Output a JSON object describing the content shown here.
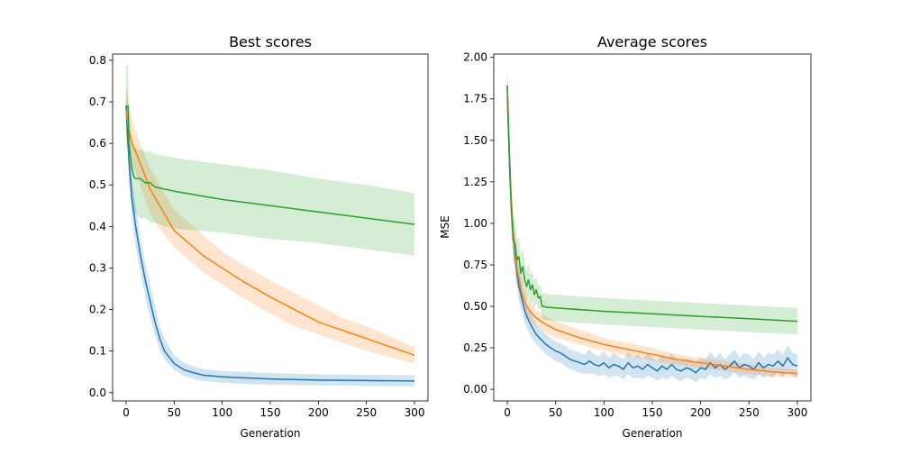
{
  "chart_data": [
    {
      "type": "line",
      "title": "Best scores",
      "xlabel": "Generation",
      "ylabel": "",
      "xlim": [
        -14,
        314
      ],
      "ylim": [
        -0.02,
        0.815
      ],
      "xticks": [
        0,
        50,
        100,
        150,
        200,
        250,
        300
      ],
      "yticks": [
        0.0,
        0.1,
        0.2,
        0.3,
        0.4,
        0.5,
        0.6,
        0.7,
        0.8
      ],
      "ytick_decimals": 1,
      "series": [
        {
          "color": "#1f77b4",
          "x": [
            0,
            3,
            6,
            10,
            15,
            20,
            25,
            30,
            35,
            40,
            50,
            60,
            70,
            80,
            100,
            120,
            150,
            200,
            250,
            300
          ],
          "values": [
            0.69,
            0.56,
            0.47,
            0.4,
            0.33,
            0.27,
            0.22,
            0.17,
            0.13,
            0.1,
            0.07,
            0.055,
            0.048,
            0.042,
            0.038,
            0.036,
            0.033,
            0.03,
            0.029,
            0.028
          ],
          "lower": [
            0.65,
            0.51,
            0.42,
            0.35,
            0.29,
            0.23,
            0.18,
            0.14,
            0.1,
            0.08,
            0.055,
            0.04,
            0.033,
            0.028,
            0.024,
            0.021,
            0.019,
            0.017,
            0.016,
            0.015
          ],
          "upper": [
            0.73,
            0.61,
            0.52,
            0.45,
            0.37,
            0.31,
            0.26,
            0.21,
            0.16,
            0.13,
            0.09,
            0.072,
            0.063,
            0.057,
            0.052,
            0.05,
            0.047,
            0.044,
            0.043,
            0.042
          ]
        },
        {
          "color": "#ff7f0e",
          "x": [
            0,
            3,
            6,
            10,
            15,
            20,
            25,
            30,
            40,
            50,
            60,
            80,
            100,
            120,
            150,
            175,
            200,
            225,
            250,
            275,
            300
          ],
          "values": [
            0.68,
            0.63,
            0.6,
            0.58,
            0.55,
            0.52,
            0.49,
            0.47,
            0.43,
            0.39,
            0.37,
            0.33,
            0.3,
            0.27,
            0.23,
            0.2,
            0.17,
            0.15,
            0.13,
            0.11,
            0.09
          ],
          "lower": [
            0.62,
            0.58,
            0.55,
            0.53,
            0.5,
            0.46,
            0.43,
            0.41,
            0.38,
            0.35,
            0.33,
            0.29,
            0.26,
            0.23,
            0.19,
            0.16,
            0.14,
            0.12,
            0.1,
            0.085,
            0.07
          ],
          "upper": [
            0.74,
            0.7,
            0.66,
            0.63,
            0.6,
            0.57,
            0.54,
            0.52,
            0.48,
            0.44,
            0.42,
            0.38,
            0.34,
            0.31,
            0.27,
            0.24,
            0.21,
            0.18,
            0.16,
            0.135,
            0.11
          ]
        },
        {
          "color": "#2ca02c",
          "x": [
            0,
            1,
            2,
            3,
            5,
            6,
            8,
            10,
            15,
            20,
            25,
            30,
            40,
            50,
            100,
            150,
            200,
            250,
            300
          ],
          "values": [
            0.69,
            0.69,
            0.69,
            0.6,
            0.56,
            0.54,
            0.52,
            0.515,
            0.515,
            0.505,
            0.505,
            0.495,
            0.49,
            0.485,
            0.465,
            0.45,
            0.435,
            0.42,
            0.405
          ],
          "lower": [
            0.59,
            0.59,
            0.59,
            0.52,
            0.47,
            0.45,
            0.43,
            0.43,
            0.42,
            0.42,
            0.41,
            0.41,
            0.4,
            0.395,
            0.385,
            0.37,
            0.36,
            0.345,
            0.33
          ],
          "upper": [
            0.79,
            0.79,
            0.79,
            0.68,
            0.64,
            0.62,
            0.6,
            0.59,
            0.585,
            0.58,
            0.58,
            0.575,
            0.57,
            0.565,
            0.55,
            0.535,
            0.515,
            0.5,
            0.48
          ]
        }
      ]
    },
    {
      "type": "line",
      "title": "Average scores",
      "xlabel": "Generation",
      "ylabel": "MSE",
      "xlim": [
        -14,
        314
      ],
      "ylim": [
        -0.07,
        2.02
      ],
      "xticks": [
        0,
        50,
        100,
        150,
        200,
        250,
        300
      ],
      "yticks": [
        0.0,
        0.25,
        0.5,
        0.75,
        1.0,
        1.25,
        1.5,
        1.75,
        2.0
      ],
      "ytick_decimals": 2,
      "series": [
        {
          "color": "#1f77b4",
          "x": [
            0,
            2,
            4,
            6,
            8,
            10,
            12,
            15,
            18,
            20,
            25,
            30,
            35,
            40,
            45,
            50,
            55,
            60,
            65,
            70,
            75,
            80,
            85,
            90,
            95,
            100,
            105,
            110,
            115,
            120,
            125,
            130,
            135,
            140,
            145,
            150,
            155,
            160,
            165,
            170,
            175,
            180,
            185,
            190,
            195,
            200,
            205,
            210,
            215,
            220,
            225,
            230,
            235,
            240,
            245,
            250,
            255,
            260,
            265,
            270,
            275,
            280,
            285,
            290,
            295,
            300
          ],
          "values": [
            1.83,
            1.45,
            1.15,
            0.95,
            0.8,
            0.7,
            0.62,
            0.55,
            0.48,
            0.44,
            0.38,
            0.33,
            0.3,
            0.27,
            0.25,
            0.23,
            0.22,
            0.2,
            0.18,
            0.17,
            0.16,
            0.15,
            0.17,
            0.15,
            0.14,
            0.16,
            0.13,
            0.15,
            0.14,
            0.12,
            0.16,
            0.13,
            0.14,
            0.12,
            0.15,
            0.13,
            0.11,
            0.14,
            0.12,
            0.15,
            0.12,
            0.11,
            0.13,
            0.12,
            0.1,
            0.13,
            0.12,
            0.16,
            0.13,
            0.15,
            0.12,
            0.14,
            0.17,
            0.13,
            0.15,
            0.14,
            0.12,
            0.16,
            0.13,
            0.15,
            0.14,
            0.17,
            0.14,
            0.19,
            0.15,
            0.14
          ],
          "lower": [
            1.73,
            1.35,
            1.05,
            0.85,
            0.7,
            0.61,
            0.53,
            0.47,
            0.4,
            0.37,
            0.31,
            0.27,
            0.24,
            0.21,
            0.19,
            0.17,
            0.16,
            0.14,
            0.12,
            0.11,
            0.1,
            0.09,
            0.1,
            0.09,
            0.08,
            0.09,
            0.07,
            0.08,
            0.08,
            0.06,
            0.09,
            0.07,
            0.07,
            0.06,
            0.08,
            0.07,
            0.05,
            0.07,
            0.06,
            0.08,
            0.06,
            0.05,
            0.07,
            0.06,
            0.04,
            0.07,
            0.06,
            0.09,
            0.07,
            0.08,
            0.06,
            0.07,
            0.1,
            0.07,
            0.08,
            0.07,
            0.06,
            0.09,
            0.07,
            0.08,
            0.07,
            0.1,
            0.07,
            0.11,
            0.08,
            0.07
          ],
          "upper": [
            1.93,
            1.55,
            1.25,
            1.05,
            0.9,
            0.79,
            0.71,
            0.63,
            0.56,
            0.51,
            0.45,
            0.39,
            0.36,
            0.33,
            0.31,
            0.29,
            0.28,
            0.26,
            0.24,
            0.23,
            0.22,
            0.21,
            0.24,
            0.21,
            0.2,
            0.23,
            0.19,
            0.22,
            0.2,
            0.18,
            0.23,
            0.19,
            0.21,
            0.18,
            0.22,
            0.19,
            0.17,
            0.21,
            0.18,
            0.22,
            0.18,
            0.17,
            0.19,
            0.18,
            0.16,
            0.19,
            0.18,
            0.23,
            0.19,
            0.22,
            0.18,
            0.21,
            0.24,
            0.19,
            0.22,
            0.21,
            0.18,
            0.23,
            0.19,
            0.22,
            0.21,
            0.24,
            0.21,
            0.27,
            0.22,
            0.21
          ]
        },
        {
          "color": "#ff7f0e",
          "x": [
            0,
            3,
            6,
            10,
            15,
            20,
            25,
            30,
            40,
            50,
            75,
            100,
            125,
            150,
            175,
            200,
            225,
            250,
            275,
            300
          ],
          "values": [
            1.75,
            1.25,
            0.95,
            0.72,
            0.58,
            0.5,
            0.46,
            0.43,
            0.39,
            0.36,
            0.31,
            0.27,
            0.24,
            0.21,
            0.18,
            0.16,
            0.14,
            0.12,
            0.105,
            0.095
          ],
          "lower": [
            1.65,
            1.15,
            0.86,
            0.64,
            0.51,
            0.44,
            0.4,
            0.38,
            0.34,
            0.31,
            0.27,
            0.23,
            0.2,
            0.17,
            0.15,
            0.13,
            0.11,
            0.09,
            0.08,
            0.07
          ],
          "upper": [
            1.85,
            1.35,
            1.04,
            0.8,
            0.65,
            0.56,
            0.52,
            0.48,
            0.44,
            0.41,
            0.36,
            0.31,
            0.28,
            0.25,
            0.21,
            0.19,
            0.17,
            0.15,
            0.13,
            0.12
          ]
        },
        {
          "color": "#2ca02c",
          "x": [
            0,
            2,
            4,
            6,
            8,
            10,
            12,
            14,
            16,
            18,
            20,
            22,
            24,
            26,
            28,
            30,
            32,
            34,
            36,
            38,
            40,
            50,
            100,
            150,
            200,
            250,
            300
          ],
          "values": [
            1.83,
            1.4,
            1.1,
            0.9,
            0.88,
            0.78,
            0.8,
            0.7,
            0.74,
            0.66,
            0.62,
            0.66,
            0.6,
            0.63,
            0.57,
            0.6,
            0.55,
            0.56,
            0.5,
            0.5,
            0.495,
            0.49,
            0.47,
            0.455,
            0.44,
            0.425,
            0.41
          ],
          "lower": [
            1.73,
            1.28,
            0.98,
            0.78,
            0.75,
            0.66,
            0.68,
            0.59,
            0.63,
            0.56,
            0.53,
            0.56,
            0.51,
            0.54,
            0.49,
            0.52,
            0.48,
            0.49,
            0.43,
            0.42,
            0.42,
            0.41,
            0.39,
            0.375,
            0.36,
            0.345,
            0.33
          ],
          "upper": [
            1.93,
            1.52,
            1.22,
            1.02,
            1.01,
            0.9,
            0.92,
            0.81,
            0.85,
            0.76,
            0.71,
            0.76,
            0.69,
            0.72,
            0.65,
            0.68,
            0.62,
            0.63,
            0.58,
            0.58,
            0.575,
            0.57,
            0.55,
            0.535,
            0.52,
            0.505,
            0.49
          ]
        }
      ]
    }
  ]
}
